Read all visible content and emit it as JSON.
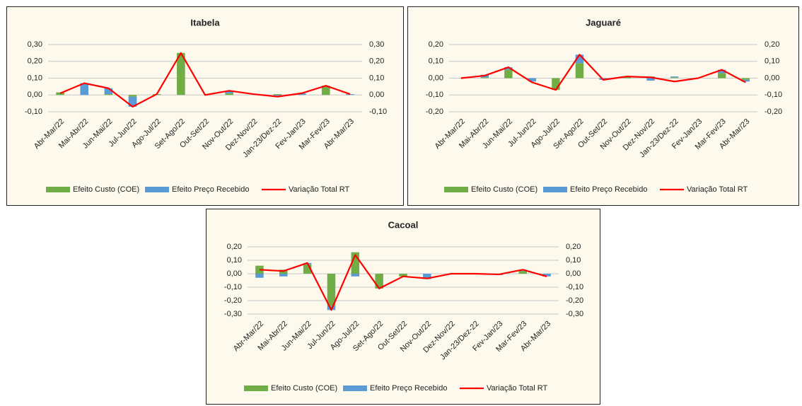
{
  "chart_data": [
    {
      "type": "bar",
      "title": "Itabela",
      "categories": [
        "Abr-Mar/22",
        "Mai-Abr/22",
        "Jun-Mai/22",
        "Jul-Jun/22",
        "Ago-Jul/22",
        "Set-Ago/22",
        "Out-Set/22",
        "Nov-Out/22",
        "Dez-Nov/22",
        "Jan-23/Dez-22",
        "Fev-Jan/23",
        "Mar-Fev/23",
        "Abr-Mar/23"
      ],
      "series": [
        {
          "name": "Efeito Custo (COE)",
          "color": "#70ad47",
          "values": [
            0.015,
            0,
            0.005,
            -0.01,
            0.005,
            0.25,
            0,
            0.01,
            0,
            0.005,
            0,
            0.05,
            0
          ]
        },
        {
          "name": "Efeito Preço Recebido",
          "color": "#5b9bd5",
          "values": [
            0,
            0.07,
            0.035,
            -0.06,
            0,
            0,
            0,
            0.01,
            0,
            -0.005,
            0.01,
            0.005,
            0.005
          ]
        },
        {
          "name": "Variação Total RT",
          "color": "#ff0000",
          "type": "line",
          "values": [
            0.01,
            0.07,
            0.04,
            -0.07,
            0.005,
            0.25,
            0,
            0.025,
            0.005,
            -0.01,
            0.01,
            0.055,
            0.005
          ]
        }
      ],
      "ylim": [
        -0.1,
        0.3
      ],
      "yticks": [
        {
          "value": 0.3,
          "label": "0,30"
        },
        {
          "value": 0.2,
          "label": "0,20"
        },
        {
          "value": 0.1,
          "label": "0,10"
        },
        {
          "value": 0,
          "label": "0,00"
        },
        {
          "value": -0.1,
          "label": "-0,10"
        }
      ],
      "y2lim": [
        -0.1,
        0.3
      ],
      "y2ticks": [
        {
          "value": 0.3,
          "label": "0,30"
        },
        {
          "value": 0.2,
          "label": "0,20"
        },
        {
          "value": 0.1,
          "label": "0,10"
        },
        {
          "value": 0,
          "label": "0,00"
        },
        {
          "value": -0.1,
          "label": "-0,10"
        }
      ],
      "grid": true,
      "legend": "bottom"
    },
    {
      "type": "bar",
      "title": "Jaguaré",
      "categories": [
        "Abr-Mar/22",
        "Mai-Abr/22",
        "Jun-Mai/22",
        "Jul-Jun/22",
        "Ago-Jul/22",
        "Set-Ago/22",
        "Out-Set/22",
        "Nov-Out/22",
        "Dez-Nov/22",
        "Jan-23/Dez-22",
        "Fev-Jan/23",
        "Mar-Fev/23",
        "Abr-Mar/23"
      ],
      "series": [
        {
          "name": "Efeito Custo (COE)",
          "color": "#70ad47",
          "values": [
            0,
            0.005,
            0.05,
            0,
            -0.07,
            0.09,
            0,
            0.005,
            0.01,
            0.005,
            0,
            0.03,
            -0.01
          ]
        },
        {
          "name": "Efeito Preço Recebido",
          "color": "#5b9bd5",
          "values": [
            0,
            0.015,
            0.015,
            -0.02,
            0,
            0.05,
            -0.01,
            0.005,
            -0.015,
            0.005,
            0,
            0.02,
            -0.01
          ]
        },
        {
          "name": "Variação Total RT",
          "color": "#ff0000",
          "type": "line",
          "values": [
            0,
            0.015,
            0.065,
            -0.025,
            -0.07,
            0.14,
            -0.01,
            0.01,
            0.005,
            -0.02,
            0,
            0.05,
            -0.025
          ]
        }
      ],
      "ylim": [
        -0.2,
        0.2
      ],
      "yticks": [
        {
          "value": 0.2,
          "label": "0,20"
        },
        {
          "value": 0.1,
          "label": "0,10"
        },
        {
          "value": 0,
          "label": "0,00"
        },
        {
          "value": -0.1,
          "label": "-0,10"
        },
        {
          "value": -0.2,
          "label": "-0,20"
        }
      ],
      "y2lim": [
        -0.2,
        0.2
      ],
      "y2ticks": [
        {
          "value": 0.2,
          "label": "0,20"
        },
        {
          "value": 0.1,
          "label": "0,10"
        },
        {
          "value": 0,
          "label": "0,00"
        },
        {
          "value": -0.1,
          "label": "-0,10"
        },
        {
          "value": -0.2,
          "label": "-0,20"
        }
      ],
      "grid": true,
      "legend": "bottom"
    },
    {
      "type": "bar",
      "title": "Cacoal",
      "categories": [
        "Abr-Mar/22",
        "Mai-Abr/22",
        "Jun-Mai/22",
        "Jul-Jun/22",
        "Ago-Jul/22",
        "Set-Ago/22",
        "Out-Set/22",
        "Nov-Out/22",
        "Dez-Nov/22",
        "Jan-23/Dez-22",
        "Fev-Jan/23",
        "Mar-Fev/23",
        "Abr-Mar/23"
      ],
      "series": [
        {
          "name": "Efeito Custo (COE)",
          "color": "#70ad47",
          "values": [
            0.06,
            0.03,
            0.07,
            -0.24,
            0.16,
            -0.11,
            -0.02,
            0,
            0,
            0.005,
            0,
            0.02,
            0
          ]
        },
        {
          "name": "Efeito Preço Recebido",
          "color": "#5b9bd5",
          "values": [
            -0.03,
            -0.02,
            0.01,
            -0.03,
            -0.02,
            0,
            0,
            -0.04,
            0,
            0,
            -0.01,
            0.01,
            -0.02
          ]
        },
        {
          "name": "Variação Total RT",
          "color": "#ff0000",
          "type": "line",
          "values": [
            0.03,
            0.02,
            0.08,
            -0.27,
            0.14,
            -0.11,
            -0.02,
            -0.035,
            0,
            0,
            -0.005,
            0.03,
            -0.02
          ]
        }
      ],
      "ylim": [
        -0.3,
        0.2
      ],
      "yticks": [
        {
          "value": 0.2,
          "label": "0,20"
        },
        {
          "value": 0.1,
          "label": "0,10"
        },
        {
          "value": 0,
          "label": "0,00"
        },
        {
          "value": -0.1,
          "label": "-0,10"
        },
        {
          "value": -0.2,
          "label": "-0,20"
        },
        {
          "value": -0.3,
          "label": "-0,30"
        }
      ],
      "y2lim": [
        -0.3,
        0.2
      ],
      "y2ticks": [
        {
          "value": 0.2,
          "label": "0,20"
        },
        {
          "value": 0.1,
          "label": "0,10"
        },
        {
          "value": 0,
          "label": "0,00"
        },
        {
          "value": -0.1,
          "label": "-0,10"
        },
        {
          "value": -0.2,
          "label": "-0,20"
        },
        {
          "value": -0.3,
          "label": "-0,30"
        }
      ],
      "grid": true,
      "legend": "bottom"
    }
  ]
}
